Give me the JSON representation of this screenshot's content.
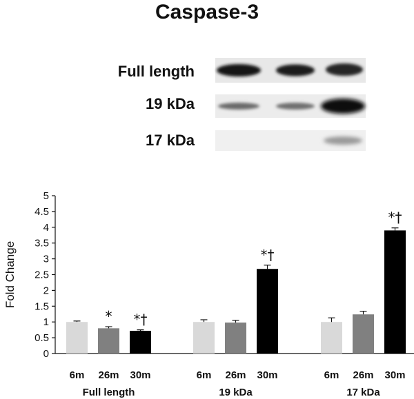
{
  "figure": {
    "title": "Caspase-3",
    "blot_labels": [
      "Full length",
      "19 kDa",
      "17 kDa"
    ]
  },
  "chart_data": {
    "type": "bar",
    "ylabel": "Fold Change",
    "ylim": [
      0,
      5
    ],
    "yticks": [
      "0",
      "0.5",
      "1",
      "1.5",
      "2",
      "2.5",
      "3",
      "3.5",
      "4",
      "4.5",
      "5"
    ],
    "grid": false,
    "groups": [
      {
        "name": "Full length",
        "bars": [
          {
            "label": "6m",
            "value": 1.0,
            "error": 0.03,
            "color": "#d9d9d9",
            "annotation": ""
          },
          {
            "label": "26m",
            "value": 0.8,
            "error": 0.05,
            "color": "#808080",
            "annotation": "*"
          },
          {
            "label": "30m",
            "value": 0.72,
            "error": 0.03,
            "color": "#000000",
            "annotation": "*†"
          }
        ]
      },
      {
        "name": "19 kDa",
        "bars": [
          {
            "label": "6m",
            "value": 1.0,
            "error": 0.07,
            "color": "#d9d9d9",
            "annotation": ""
          },
          {
            "label": "26m",
            "value": 0.98,
            "error": 0.07,
            "color": "#808080",
            "annotation": ""
          },
          {
            "label": "30m",
            "value": 2.68,
            "error": 0.12,
            "color": "#000000",
            "annotation": "*†"
          }
        ]
      },
      {
        "name": "17 kDa",
        "bars": [
          {
            "label": "6m",
            "value": 1.0,
            "error": 0.13,
            "color": "#d9d9d9",
            "annotation": ""
          },
          {
            "label": "26m",
            "value": 1.24,
            "error": 0.1,
            "color": "#808080",
            "annotation": ""
          },
          {
            "label": "30m",
            "value": 3.9,
            "error": 0.08,
            "color": "#000000",
            "annotation": "*†"
          }
        ]
      }
    ]
  }
}
